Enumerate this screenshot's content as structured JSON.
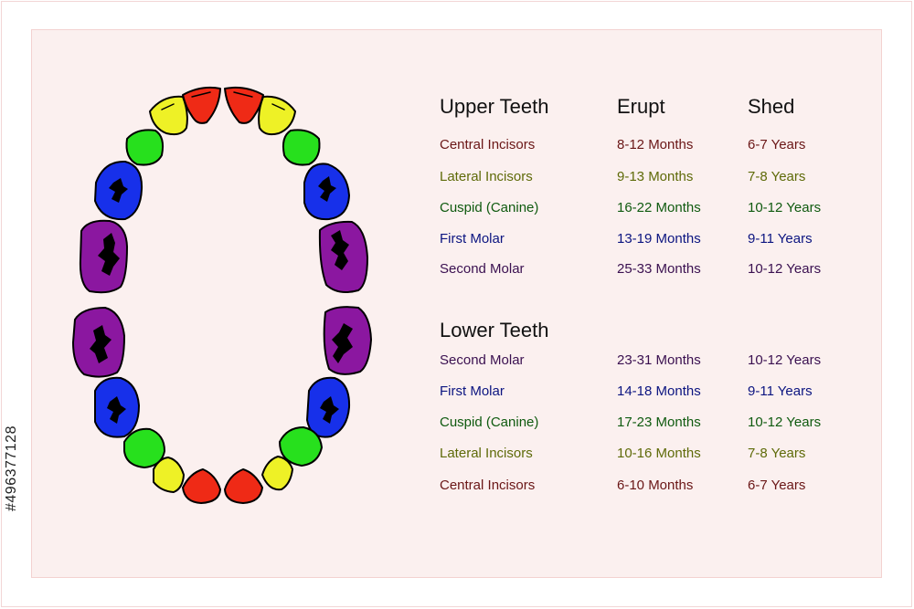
{
  "colors": {
    "incisor_central": "#ef2a16",
    "incisor_lateral": "#eef126",
    "canine": "#27e01d",
    "first_molar": "#1730ea",
    "second_molar": "#8b17a0",
    "row_central_incisors": "#6a1616",
    "row_lateral_incisors": "#5e6a08",
    "row_cuspid": "#0f5a0f",
    "row_first_molar": "#0b1480",
    "row_second_molar": "#3a1050"
  },
  "table": {
    "upper": {
      "title": "Upper Teeth",
      "erupt_header": "Erupt",
      "shed_header": "Shed",
      "rows": [
        {
          "name": "Central Incisors",
          "erupt": "8-12 Months",
          "shed": "6-7 Years",
          "color": "row_central_incisors"
        },
        {
          "name": "Lateral Incisors",
          "erupt": "9-13 Months",
          "shed": "7-8 Years",
          "color": "row_lateral_incisors"
        },
        {
          "name": "Cuspid (Canine)",
          "erupt": "16-22 Months",
          "shed": "10-12 Years",
          "color": "row_cuspid"
        },
        {
          "name": "First Molar",
          "erupt": "13-19 Months",
          "shed": "9-11 Years",
          "color": "row_first_molar"
        },
        {
          "name": "Second Molar",
          "erupt": "25-33 Months",
          "shed": "10-12 Years",
          "color": "row_second_molar"
        }
      ]
    },
    "lower": {
      "title": "Lower Teeth",
      "rows": [
        {
          "name": "Second Molar",
          "erupt": "23-31 Months",
          "shed": "10-12 Years",
          "color": "row_second_molar"
        },
        {
          "name": "First Molar",
          "erupt": "14-18 Months",
          "shed": "9-11 Years",
          "color": "row_first_molar"
        },
        {
          "name": "Cuspid (Canine)",
          "erupt": "17-23 Months",
          "shed": "10-12 Years",
          "color": "row_cuspid"
        },
        {
          "name": "Lateral Incisors",
          "erupt": "10-16 Months",
          "shed": "7-8 Years",
          "color": "row_lateral_incisors"
        },
        {
          "name": "Central Incisors",
          "erupt": "6-10 Months",
          "shed": "6-7 Years",
          "color": "row_central_incisors"
        }
      ]
    }
  },
  "watermark": {
    "stock_id": "#496377128"
  }
}
